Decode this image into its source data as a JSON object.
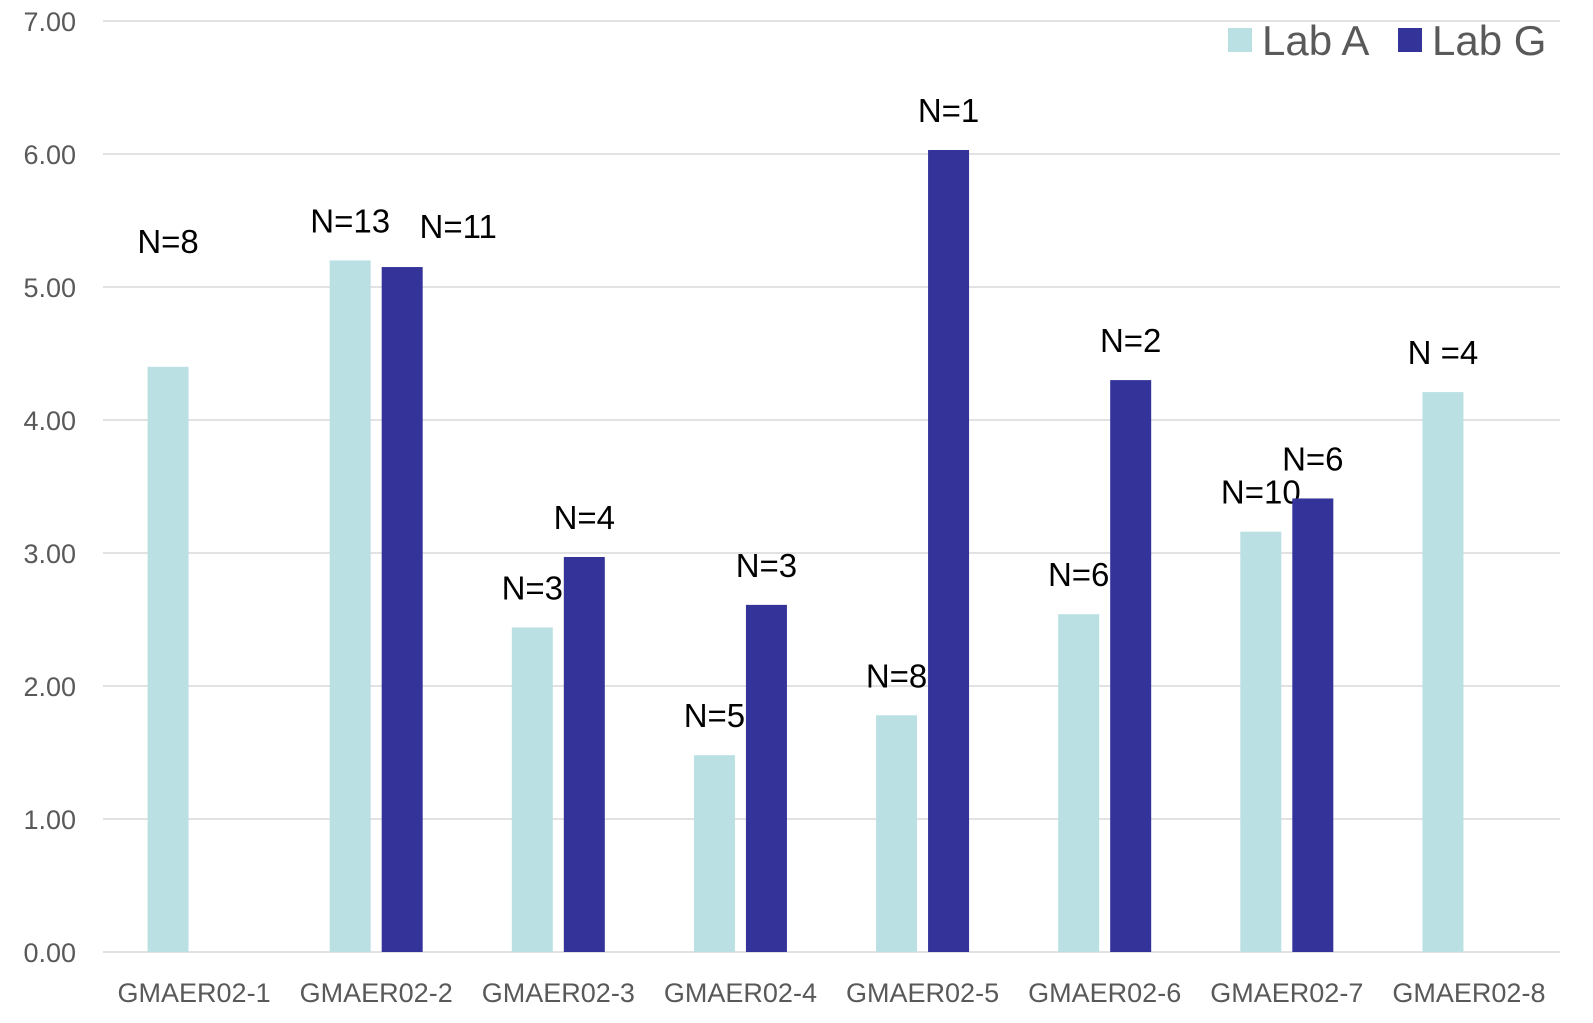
{
  "chart_data": {
    "type": "bar",
    "title": "",
    "xlabel": "",
    "ylabel": "",
    "ylim": [
      0,
      7
    ],
    "yticks": [
      "0.00",
      "1.00",
      "2.00",
      "3.00",
      "4.00",
      "5.00",
      "6.00",
      "7.00"
    ],
    "grid": true,
    "legend_position": "top-right",
    "categories": [
      "GMAER02-1",
      "GMAER02-2",
      "GMAER02-3",
      "GMAER02-4",
      "GMAER02-5",
      "GMAER02-6",
      "GMAER02-7",
      "GMAER02-8"
    ],
    "series": [
      {
        "name": "Lab A",
        "color": "#bbe0e3",
        "values": [
          4.4,
          5.2,
          2.44,
          1.48,
          1.78,
          2.54,
          3.16,
          4.21
        ],
        "labels": [
          "N=8",
          "N=13",
          "N=3",
          "N=5",
          "N=8",
          "N=6",
          "N=10",
          "N =4"
        ]
      },
      {
        "name": "Lab G",
        "color": "#333399",
        "values": [
          null,
          5.15,
          2.97,
          2.61,
          6.03,
          4.3,
          3.41,
          null
        ],
        "labels": [
          null,
          "N=11",
          "N=4",
          "N=3",
          "N=1",
          "N=2",
          "N=6",
          null
        ]
      }
    ]
  }
}
